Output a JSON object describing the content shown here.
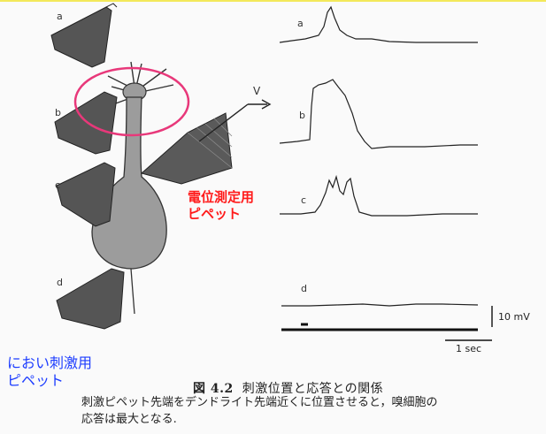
{
  "figure": {
    "trace_labels": [
      "a",
      "b",
      "c",
      "d"
    ],
    "pipette_labels": [
      "a",
      "b",
      "c",
      "d"
    ],
    "recording_label": "V",
    "scale_voltage": "10 mV",
    "scale_time": "1 sec"
  },
  "annotations": {
    "recording_pipette": [
      "電位測定用",
      "ピペット"
    ],
    "stimulus_pipette": [
      "におい刺激用",
      "ピペット"
    ]
  },
  "caption": {
    "number": "図 4.2",
    "title": "刺激位置と応答との関係",
    "body_line1": "刺激ピペット先端をデンドライト先端近くに位置させると，嗅細胞の",
    "body_line2": "応答は最大となる."
  },
  "colors": {
    "highlight_ellipse": "#e8387a",
    "cell_fill": "#9c9c9c",
    "pipette_fill": "#5a5a5a",
    "red_text": "#ff1a1a",
    "blue_text": "#1d3dff"
  }
}
